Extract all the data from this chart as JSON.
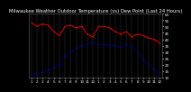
{
  "title": "Milwaukee Weather Outdoor Temperature (vs) Dew Point (Last 24 Hours)",
  "temp_color": "#dd0000",
  "dew_color": "#0000cc",
  "bg_color": "#000000",
  "plot_bg_color": "#000000",
  "grid_color": "#555555",
  "text_color": "#ffffff",
  "ylabel_color": "#ffffff",
  "ylim": [
    10,
    60
  ],
  "ytick_vals": [
    60,
    55,
    50,
    45,
    40,
    35,
    30,
    25,
    20,
    15,
    10
  ],
  "ytick_labels": [
    "60",
    "55",
    "50",
    "45",
    "40",
    "35",
    "30",
    "25",
    "20",
    "15",
    "10"
  ],
  "temp_x": [
    0,
    1,
    2,
    3,
    4,
    5,
    6,
    7,
    8,
    9,
    10,
    11,
    12,
    13,
    14,
    15,
    16,
    17,
    18,
    19,
    20,
    21,
    22,
    23
  ],
  "temp_y": [
    53,
    50,
    52,
    51,
    46,
    43,
    50,
    51,
    49,
    50,
    44,
    42,
    50,
    50,
    49,
    46,
    44,
    46,
    42,
    44,
    43,
    41,
    40,
    37
  ],
  "dew_x": [
    0,
    1,
    2,
    3,
    4,
    5,
    6,
    7,
    8,
    9,
    10,
    11,
    12,
    13,
    14,
    15,
    16,
    17,
    18,
    19,
    20,
    21,
    22,
    23
  ],
  "dew_y": [
    12,
    13,
    14,
    16,
    18,
    20,
    27,
    30,
    33,
    35,
    36,
    37,
    36,
    36,
    35,
    35,
    34,
    36,
    34,
    30,
    24,
    20,
    16,
    14
  ],
  "xtick_labels": [
    "1",
    "2",
    "3",
    "4",
    "5",
    "6",
    "7",
    "8",
    "9",
    "10",
    "11",
    "12",
    "1",
    "2",
    "3",
    "4",
    "5",
    "6",
    "7",
    "8",
    "9",
    "10",
    "11",
    "12"
  ],
  "title_fontsize": 3.8,
  "tick_fontsize": 3.0,
  "linewidth": 0.7,
  "marker_size": 1.0,
  "num_points": 24
}
